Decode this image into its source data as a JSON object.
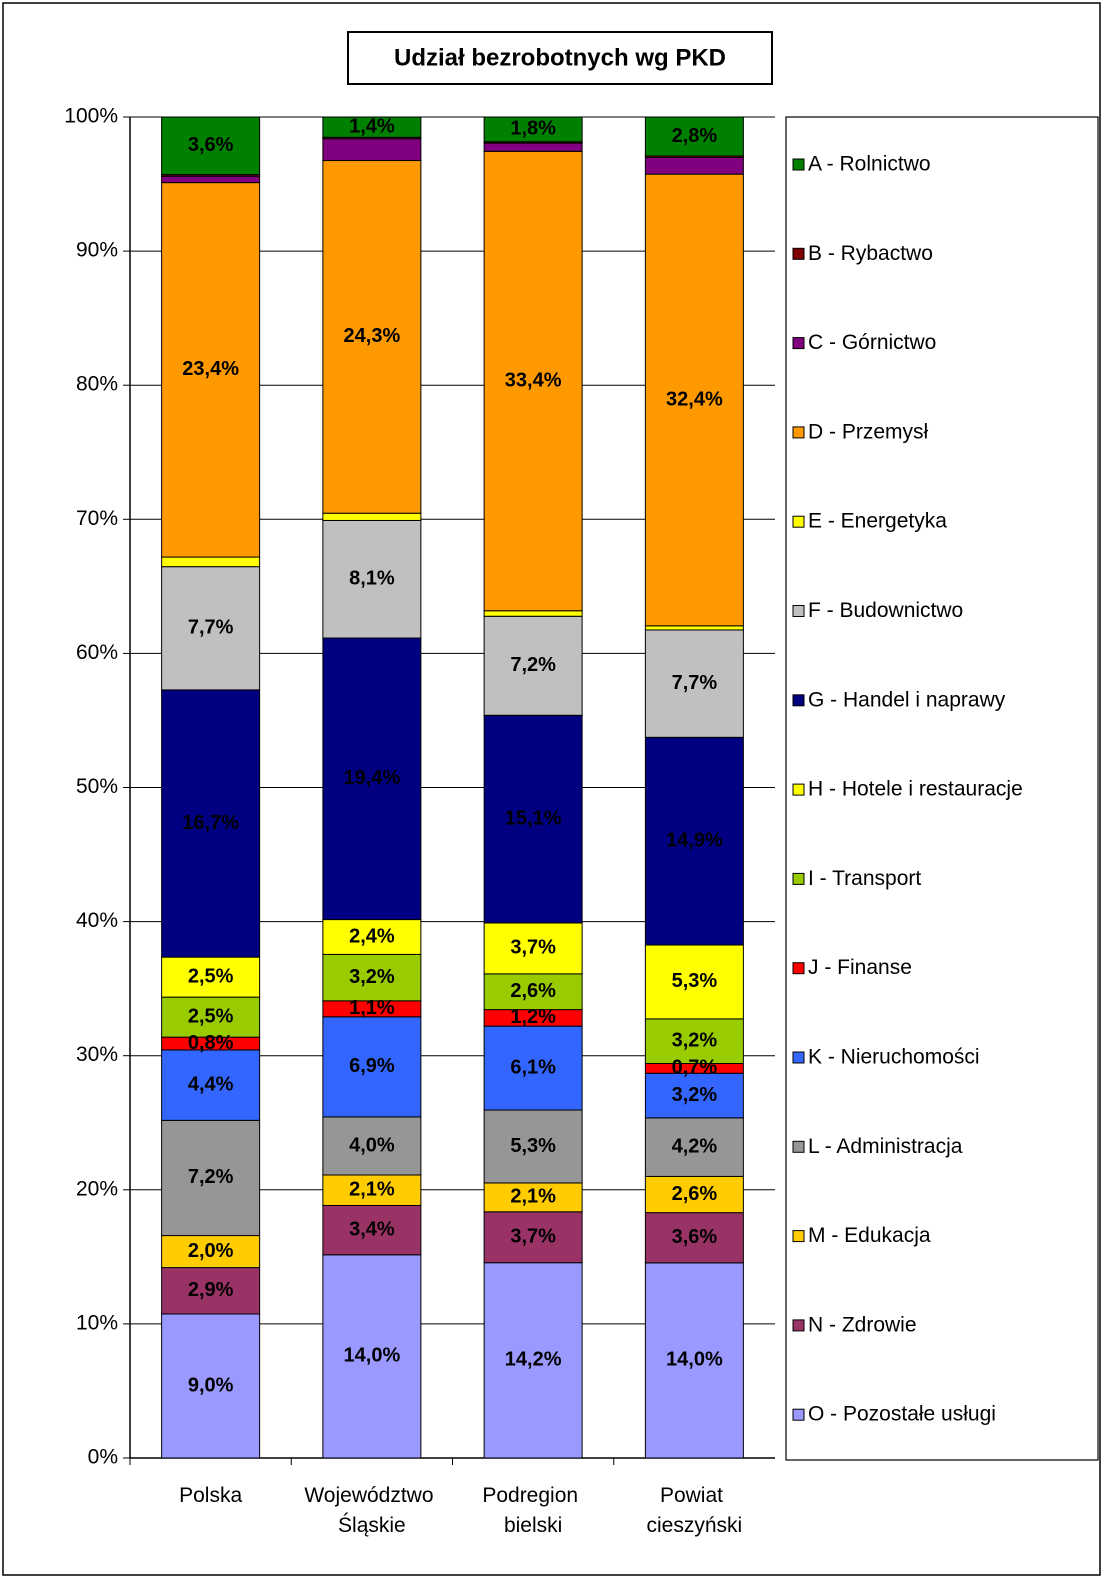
{
  "chart_data": {
    "type": "bar",
    "stacking": "percent",
    "title": "Udział bezrobotnych wg PKD",
    "categories": [
      "Polska",
      "Województwo Śląskie",
      "Podregion bielski",
      "Powiat cieszyński"
    ],
    "ylim": [
      0,
      100
    ],
    "yticks": [
      {
        "value": 0,
        "label": "0%"
      },
      {
        "value": 10,
        "label": "10%"
      },
      {
        "value": 20,
        "label": "20%"
      },
      {
        "value": 30,
        "label": "30%"
      },
      {
        "value": 40,
        "label": "40%"
      },
      {
        "value": 50,
        "label": "50%"
      },
      {
        "value": 60,
        "label": "60%"
      },
      {
        "value": 70,
        "label": "70%"
      },
      {
        "value": 80,
        "label": "80%"
      },
      {
        "value": 90,
        "label": "90%"
      },
      {
        "value": 100,
        "label": "100%"
      }
    ],
    "grid": true,
    "legend": "right",
    "series": [
      {
        "name": "A - Rolnictwo",
        "color": "#008000",
        "label_color": "#ffffff",
        "values": [
          3.6,
          1.4,
          1.8,
          2.8
        ],
        "value_labels": [
          "3,6%",
          "1,4%",
          "1,8%",
          "2,8%"
        ]
      },
      {
        "name": "B - Rybactwo",
        "color": "#800000",
        "values": [
          0.1,
          0.1,
          0.1,
          0.1
        ],
        "value_labels": [
          null,
          null,
          null,
          null
        ]
      },
      {
        "name": "C - Górnictwo",
        "color": "#800080",
        "values": [
          0.4,
          1.5,
          0.6,
          1.2
        ],
        "value_labels": [
          null,
          null,
          null,
          null
        ]
      },
      {
        "name": "D - Przemysł",
        "color": "#ff9900",
        "values": [
          23.4,
          24.3,
          33.4,
          32.4
        ],
        "value_labels": [
          "23,4%",
          "24,3%",
          "33,4%",
          "32,4%"
        ]
      },
      {
        "name": "E - Energetyka",
        "color": "#ffff00",
        "values": [
          0.6,
          0.5,
          0.4,
          0.3
        ],
        "value_labels": [
          null,
          null,
          null,
          null
        ]
      },
      {
        "name": "F - Budownictwo",
        "color": "#c0c0c0",
        "values": [
          7.7,
          8.1,
          7.2,
          7.7
        ],
        "value_labels": [
          "7,7%",
          "8,1%",
          "7,2%",
          "7,7%"
        ]
      },
      {
        "name": "G - Handel i naprawy",
        "color": "#000080",
        "label_color": "#ffffff",
        "values": [
          16.7,
          19.4,
          15.1,
          14.9
        ],
        "value_labels": [
          "16,7%",
          "19,4%",
          "15,1%",
          "14,9%"
        ]
      },
      {
        "name": "H - Hotele i restauracje",
        "color": "#ffff00",
        "values": [
          2.5,
          2.4,
          3.7,
          5.3
        ],
        "value_labels": [
          "2,5%",
          "2,4%",
          "3,7%",
          "5,3%"
        ]
      },
      {
        "name": "I - Transport",
        "color": "#99cc00",
        "values": [
          2.5,
          3.2,
          2.6,
          3.2
        ],
        "value_labels": [
          "2,5%",
          "3,2%",
          "2,6%",
          "3,2%"
        ]
      },
      {
        "name": "J - Finanse",
        "color": "#ff0000",
        "values": [
          0.8,
          1.1,
          1.2,
          0.7
        ],
        "value_labels": [
          "0,8%",
          "1,1%",
          "1,2%",
          "0,7%"
        ]
      },
      {
        "name": "K - Nieruchomości",
        "color": "#3366ff",
        "values": [
          4.4,
          6.9,
          6.1,
          3.2
        ],
        "value_labels": [
          "4,4%",
          "6,9%",
          "6,1%",
          "3,2%"
        ]
      },
      {
        "name": "L - Administracja",
        "color": "#969696",
        "values": [
          7.2,
          4.0,
          5.3,
          4.2
        ],
        "value_labels": [
          "7,2%",
          "4,0%",
          "5,3%",
          "4,2%"
        ]
      },
      {
        "name": "M - Edukacja",
        "color": "#ffcc00",
        "values": [
          2.0,
          2.1,
          2.1,
          2.6
        ],
        "value_labels": [
          "2,0%",
          "2,1%",
          "2,1%",
          "2,6%"
        ]
      },
      {
        "name": "N - Zdrowie",
        "color": "#993366",
        "values": [
          2.9,
          3.4,
          3.7,
          3.6
        ],
        "value_labels": [
          "2,9%",
          "3,4%",
          "3,7%",
          "3,6%"
        ]
      },
      {
        "name": "O - Pozostałe usługi",
        "color": "#9999ff",
        "values": [
          9.0,
          14.0,
          14.2,
          14.0
        ],
        "value_labels": [
          "9,0%",
          "14,0%",
          "14,2%",
          "14,0%"
        ]
      }
    ]
  }
}
